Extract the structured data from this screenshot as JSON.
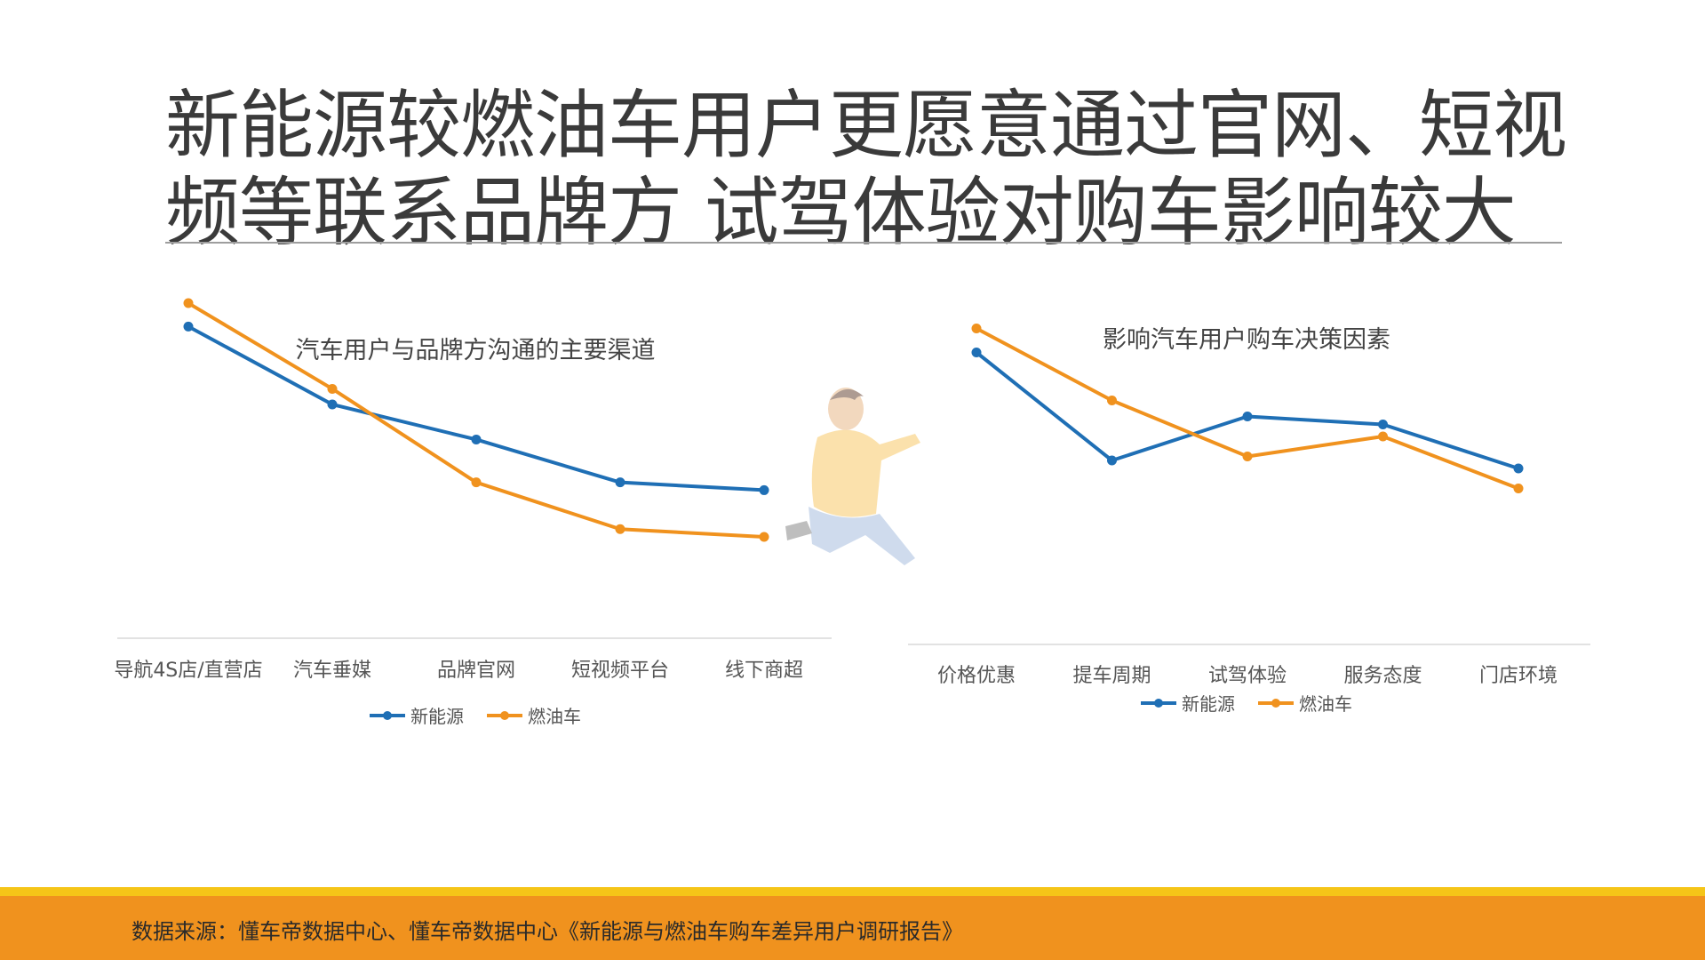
{
  "page": {
    "title_line1": "新能源较燃油车用户更愿意通过官网、短视",
    "title_line2": "频等联系品牌方 试驾体验对购车影响较大",
    "source": "数据来源：懂车帝数据中心、懂车帝数据中心《新能源与燃油车购车差异用户调研报告》"
  },
  "colors": {
    "new_energy": "#1f6fb5",
    "fuel": "#f0921e",
    "axis": "#d9d9d9",
    "footer": "#f0921e",
    "footer_stripe": "#f5c518"
  },
  "chart_data": [
    {
      "type": "line",
      "title": "汽车用户与品牌方沟通的主要渠道",
      "categories": [
        "导航4S店/直营店",
        "汽车垂媒",
        "品牌官网",
        "短视频平台",
        "线下商超"
      ],
      "series": [
        {
          "name": "新能源",
          "values": [
            61,
            41,
            32,
            21,
            19
          ]
        },
        {
          "name": "燃油车",
          "values": [
            67,
            45,
            21,
            9,
            7
          ]
        }
      ],
      "ylim": [
        0,
        80
      ],
      "grid": false,
      "legend": "bottom"
    },
    {
      "type": "line",
      "title": "影响汽车用户购车决策因素",
      "categories": [
        "价格优惠",
        "提车周期",
        "试驾体验",
        "服务态度",
        "门店环境"
      ],
      "series": [
        {
          "name": "新能源",
          "values": [
            63,
            36,
            47,
            45,
            34
          ]
        },
        {
          "name": "燃油车",
          "values": [
            69,
            51,
            37,
            42,
            29
          ]
        }
      ],
      "ylim": [
        0,
        80
      ],
      "grid": false,
      "legend": "bottom"
    }
  ]
}
